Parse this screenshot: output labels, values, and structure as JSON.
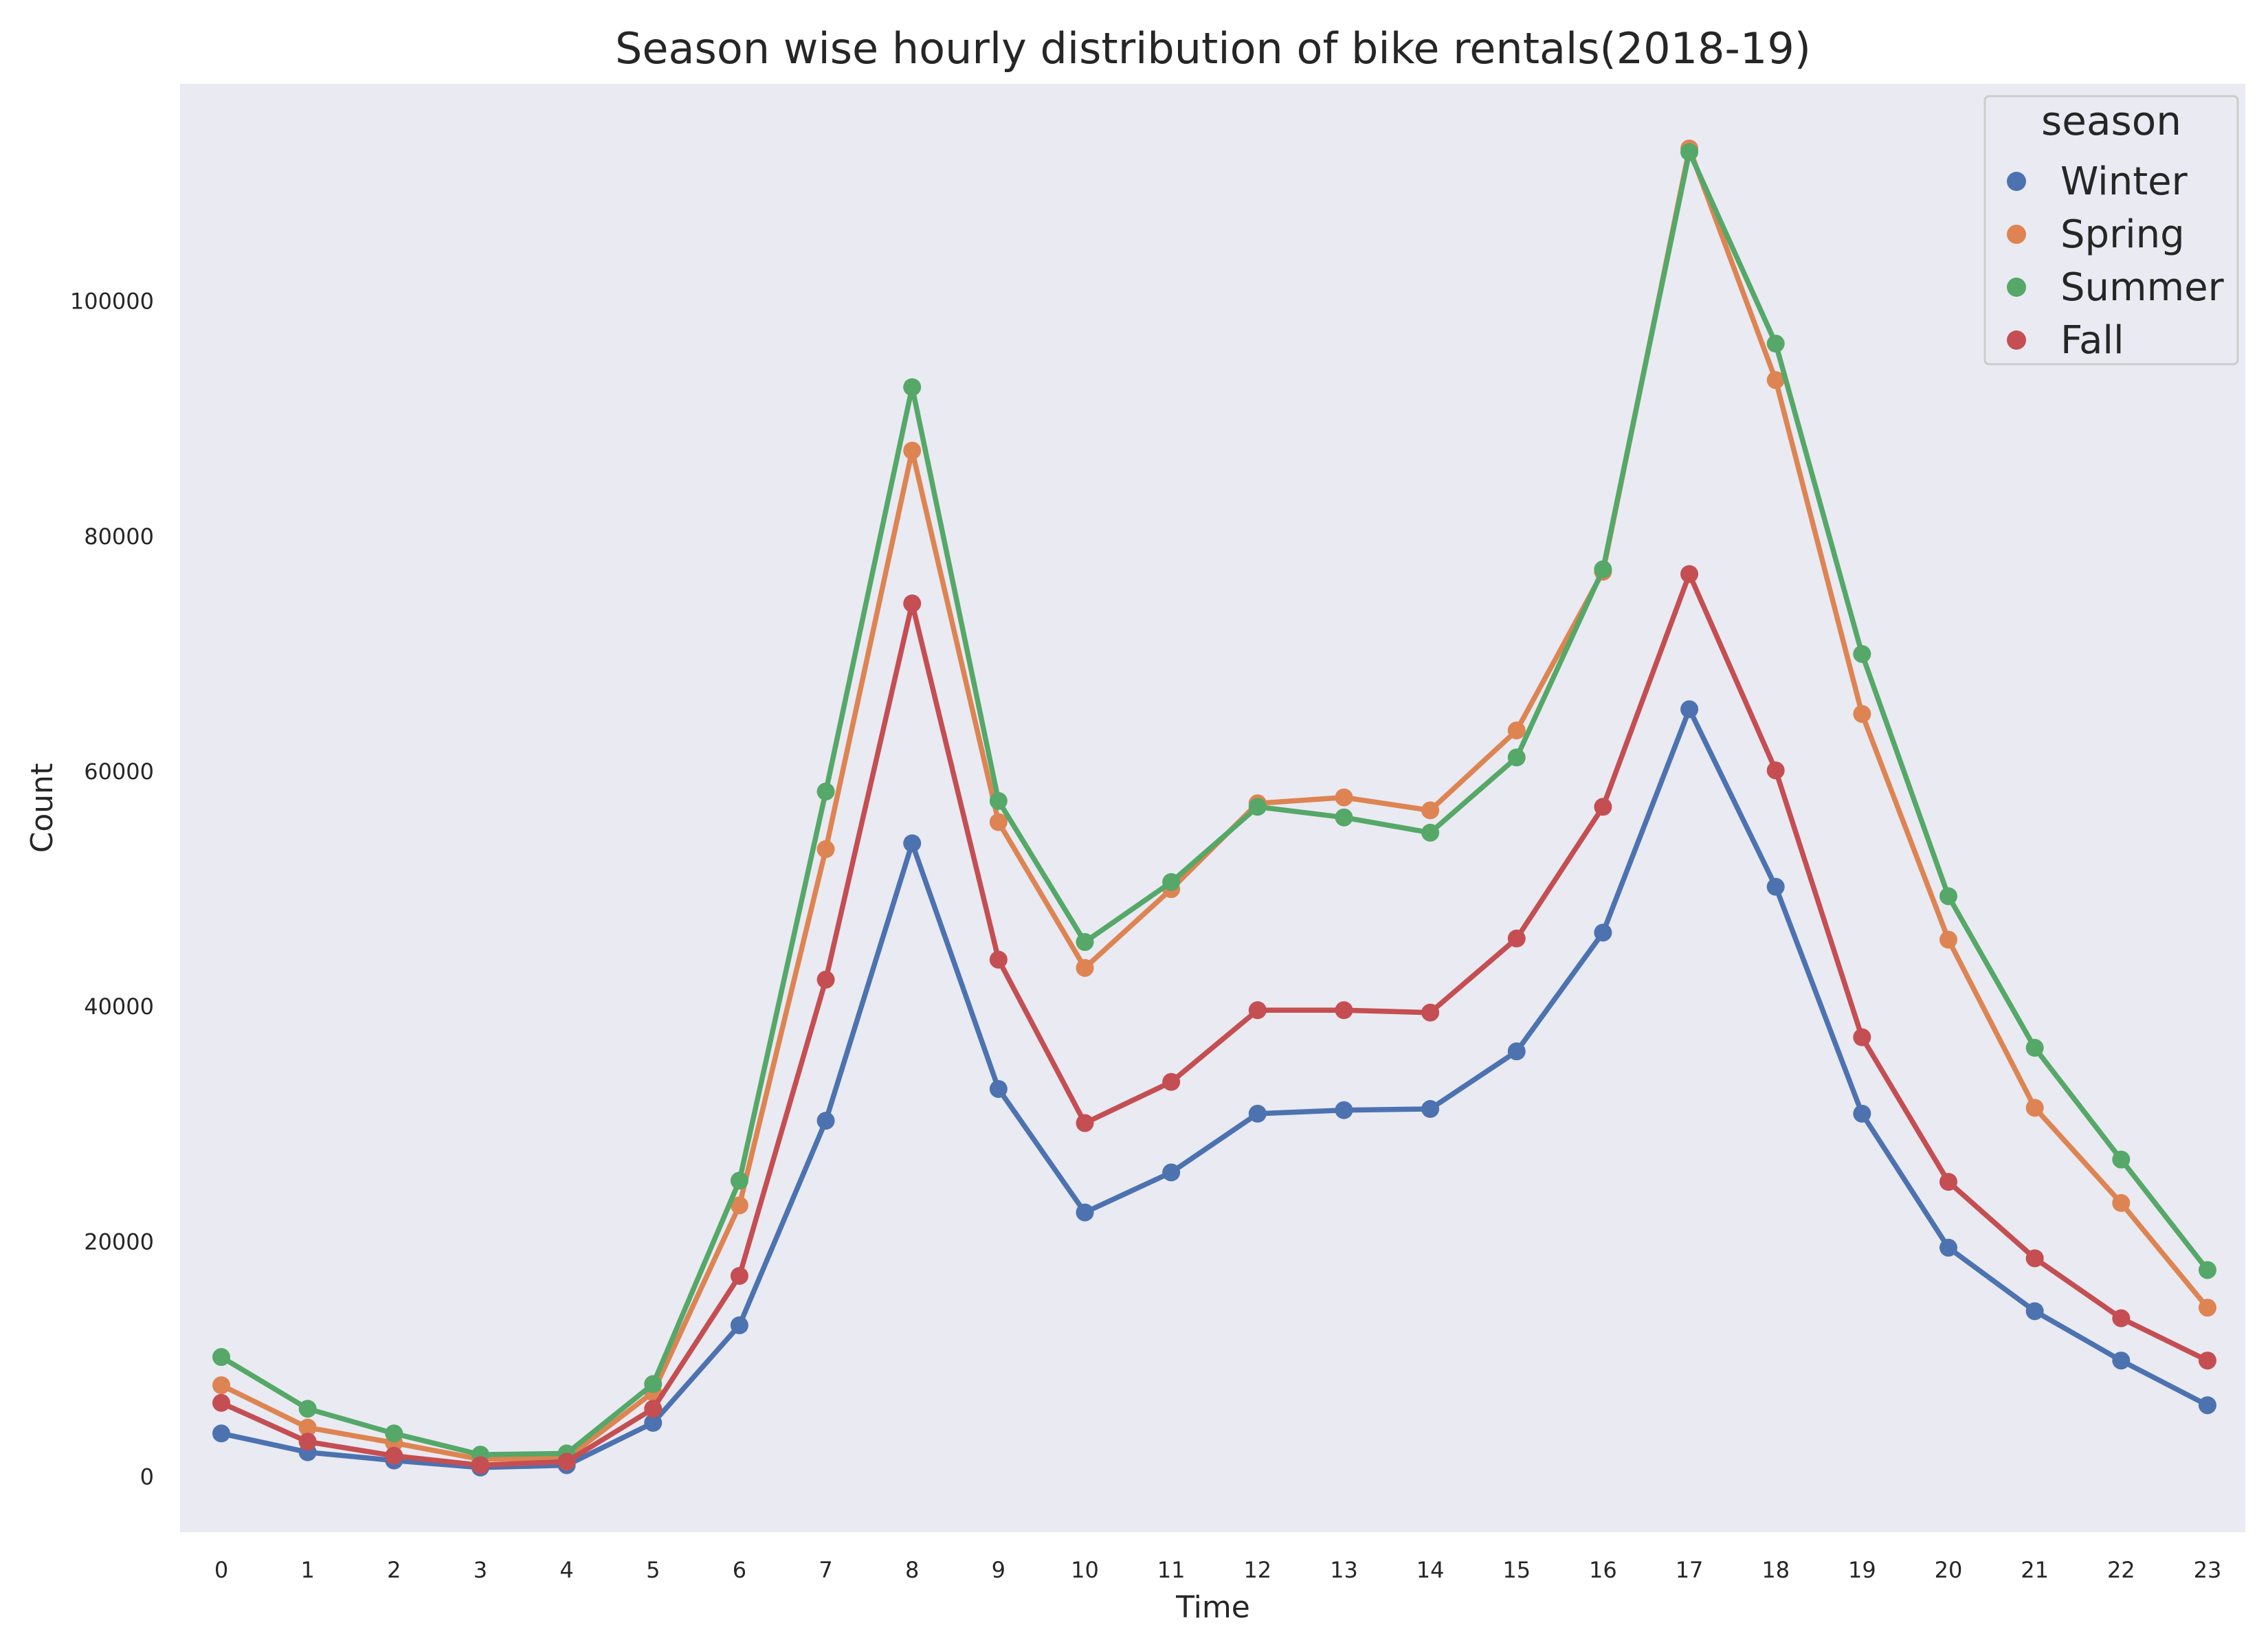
{
  "chart_data": {
    "type": "line",
    "title": "Season wise hourly distribution of bike rentals(2018-19)",
    "xlabel": "Time",
    "ylabel": "Count",
    "categories": [
      "0",
      "1",
      "2",
      "3",
      "4",
      "5",
      "6",
      "7",
      "8",
      "9",
      "10",
      "11",
      "12",
      "13",
      "14",
      "15",
      "16",
      "17",
      "18",
      "19",
      "20",
      "21",
      "22",
      "23"
    ],
    "ylim": [
      -4700,
      118500
    ],
    "yticks": [
      0,
      20000,
      40000,
      60000,
      80000,
      100000
    ],
    "ytick_labels": [
      "0",
      "20000",
      "40000",
      "60000",
      "80000",
      "100000"
    ],
    "grid": false,
    "legend": {
      "title": "season",
      "position": "top-right"
    },
    "series": [
      {
        "name": "Winter",
        "color": "#4c72b0",
        "values": [
          3700,
          2100,
          1400,
          800,
          1000,
          4600,
          12900,
          30300,
          53900,
          33000,
          22500,
          25900,
          30900,
          31200,
          31300,
          36200,
          46300,
          65300,
          50200,
          30900,
          19500,
          14100,
          9900,
          6100
        ]
      },
      {
        "name": "Spring",
        "color": "#dd8452",
        "values": [
          7800,
          4200,
          2900,
          1500,
          1600,
          7200,
          23100,
          53400,
          87300,
          55700,
          43300,
          50000,
          57300,
          57800,
          56700,
          63500,
          77000,
          113000,
          93300,
          64900,
          45700,
          31400,
          23300,
          14400
        ]
      },
      {
        "name": "Summer",
        "color": "#55a868",
        "values": [
          10200,
          5800,
          3700,
          1900,
          2000,
          7900,
          25200,
          58300,
          92700,
          57500,
          45500,
          50600,
          57000,
          56100,
          54800,
          61200,
          77200,
          112700,
          96400,
          70000,
          49400,
          36500,
          27000,
          17600
        ]
      },
      {
        "name": "Fall",
        "color": "#c44e52",
        "values": [
          6300,
          3000,
          1800,
          1000,
          1300,
          5800,
          17100,
          42300,
          74300,
          44000,
          30100,
          33600,
          39700,
          39700,
          39500,
          45800,
          57000,
          76800,
          60100,
          37400,
          25100,
          18600,
          13500,
          9900
        ]
      }
    ]
  }
}
